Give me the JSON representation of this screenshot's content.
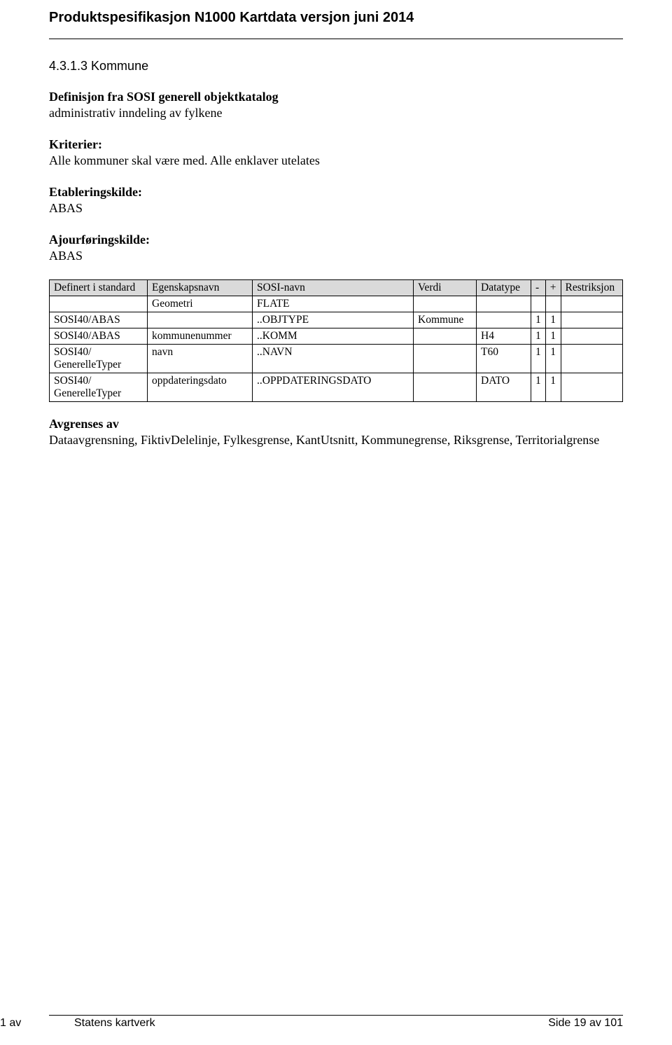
{
  "doc_title": "Produktspesifikasjon N1000 Kartdata versjon juni 2014",
  "section_number": "4.3.1.3 Kommune",
  "definition": {
    "heading": "Definisjon fra SOSI generell objektkatalog",
    "text": "administrativ inndeling av fylkene"
  },
  "kriterier": {
    "heading": "Kriterier:",
    "text": "Alle kommuner skal være med. Alle enklaver utelates"
  },
  "etablering": {
    "heading": "Etableringskilde:",
    "text": "ABAS"
  },
  "ajour": {
    "heading": "Ajourføringskilde:",
    "text": "ABAS"
  },
  "table": {
    "head": {
      "c0": "Definert i standard",
      "c1": "Egenskapsnavn",
      "c2": "SOSI-navn",
      "c3": "Verdi",
      "c4": "Datatype",
      "c5": "-",
      "c6": "+",
      "c7": "Restriksjon"
    },
    "rows": [
      {
        "c0": "",
        "c1": "Geometri",
        "c2": "FLATE",
        "c3": "",
        "c4": "",
        "c5": "",
        "c6": "",
        "c7": ""
      },
      {
        "c0": "SOSI40/ABAS",
        "c1": "",
        "c2": "..OBJTYPE",
        "c3": "Kommune",
        "c4": "",
        "c5": "1",
        "c6": "1",
        "c7": ""
      },
      {
        "c0": "SOSI40/ABAS",
        "c1": "kommunenummer",
        "c2": "..KOMM",
        "c3": "",
        "c4": "H4",
        "c5": "1",
        "c6": "1",
        "c7": ""
      },
      {
        "c0": "SOSI40/\nGenerelleTyper",
        "c1": "navn",
        "c2": "..NAVN",
        "c3": "",
        "c4": "T60",
        "c5": "1",
        "c6": "1",
        "c7": ""
      },
      {
        "c0": "SOSI40/\nGenerelleTyper",
        "c1": "oppdateringsdato",
        "c2": "..OPPDATERINGSDATO",
        "c3": "",
        "c4": "DATO",
        "c5": "1",
        "c6": "1",
        "c7": ""
      }
    ]
  },
  "avgrenses": {
    "heading": "Avgrenses av",
    "text": "Dataavgrensning, FiktivDelelinje, Fylkesgrense, KantUtsnitt, Kommunegrense, Riksgrense, Territorialgrense"
  },
  "footer": {
    "left_indent": "Statens kartverk",
    "right": "Side 19 av 101",
    "left_extra": "1 av"
  }
}
